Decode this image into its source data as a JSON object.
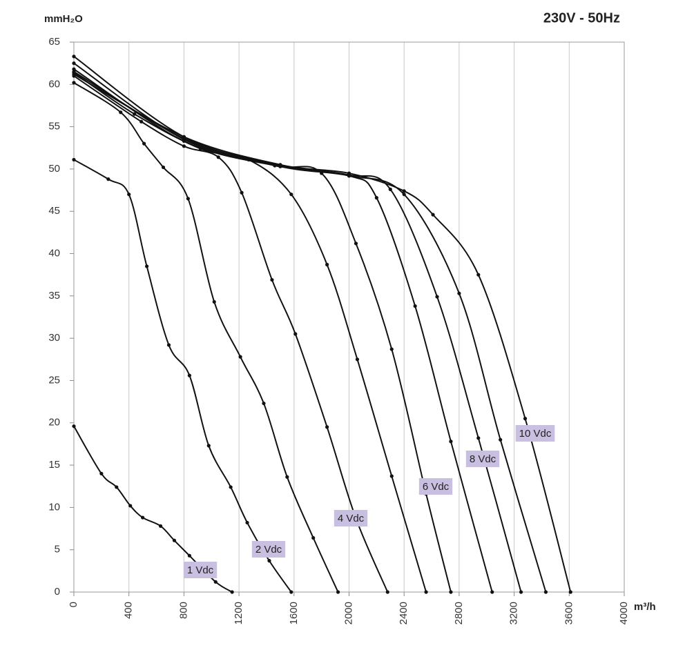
{
  "chart_data": {
    "type": "line",
    "title": "230V - 50Hz",
    "ylabel": "mmH₂O",
    "xlabel": "m³/h",
    "xlim": [
      0,
      4000
    ],
    "ylim": [
      0,
      65
    ],
    "xticks": [
      0,
      400,
      800,
      1200,
      1600,
      2000,
      2400,
      2800,
      3200,
      3600,
      4000
    ],
    "yticks": [
      0,
      5,
      10,
      15,
      20,
      25,
      30,
      35,
      40,
      45,
      50,
      55,
      60,
      65
    ],
    "grid": "x",
    "color": "#111111",
    "series": [
      {
        "name": "1 Vdc",
        "x": [
          0,
          200,
          310,
          410,
          500,
          630,
          730,
          840,
          1030,
          1150
        ],
        "values": [
          19.6,
          14,
          12.4,
          10.2,
          8.8,
          7.8,
          6.1,
          4.3,
          1.2,
          0
        ]
      },
      {
        "name": "2 Vdc",
        "x": [
          0,
          250,
          400,
          530,
          690,
          840,
          980,
          1140,
          1260,
          1420,
          1580
        ],
        "values": [
          51.1,
          48.8,
          47,
          38.5,
          29.2,
          25.6,
          17.3,
          12.4,
          8.2,
          3.7,
          0
        ]
      },
      {
        "x": [
          0,
          340,
          510,
          650,
          830,
          1020,
          1210,
          1380,
          1550,
          1740,
          1920
        ],
        "values": [
          60.2,
          56.7,
          53,
          50.2,
          46.5,
          34.3,
          27.8,
          22.3,
          13.6,
          6.4,
          0
        ]
      },
      {
        "name": "4 Vdc",
        "x": [
          0,
          490,
          800,
          1050,
          1220,
          1440,
          1610,
          1840,
          2050,
          2280
        ],
        "values": [
          61,
          55.6,
          52.7,
          51.4,
          47.2,
          36.9,
          30.5,
          19.5,
          8.7,
          0
        ]
      },
      {
        "x": [
          0,
          440,
          920,
          1270,
          1580,
          1840,
          2060,
          2310,
          2560
        ],
        "values": [
          61.4,
          56.5,
          52.4,
          51.1,
          47,
          38.7,
          27.5,
          13.7,
          0
        ]
      },
      {
        "name": "6 Vdc",
        "x": [
          0,
          800,
          1460,
          1800,
          2050,
          2310,
          2560,
          2740
        ],
        "values": [
          61.8,
          53.3,
          50.4,
          49.5,
          41.2,
          28.7,
          11.6,
          0
        ]
      },
      {
        "x": [
          0,
          800,
          1460,
          2000,
          2200,
          2480,
          2740,
          3040
        ],
        "values": [
          61.5,
          53.6,
          50.5,
          49.2,
          46.6,
          33.8,
          17.8,
          0
        ]
      },
      {
        "name": "8 Vdc",
        "x": [
          0,
          800,
          1500,
          2000,
          2300,
          2640,
          2940,
          3250
        ],
        "values": [
          61.2,
          53.8,
          50.5,
          49.3,
          47.6,
          34.9,
          18.2,
          0
        ]
      },
      {
        "x": [
          0,
          800,
          1500,
          2000,
          2400,
          2800,
          3100,
          3430
        ],
        "values": [
          62.5,
          53.5,
          50.3,
          49.2,
          47,
          35.3,
          18,
          0
        ]
      },
      {
        "name": "10 Vdc",
        "x": [
          0,
          800,
          1500,
          2000,
          2400,
          2610,
          2940,
          3280,
          3610
        ],
        "values": [
          63.3,
          53.8,
          50.5,
          49.5,
          47.4,
          44.6,
          37.5,
          20.5,
          0
        ]
      }
    ]
  }
}
